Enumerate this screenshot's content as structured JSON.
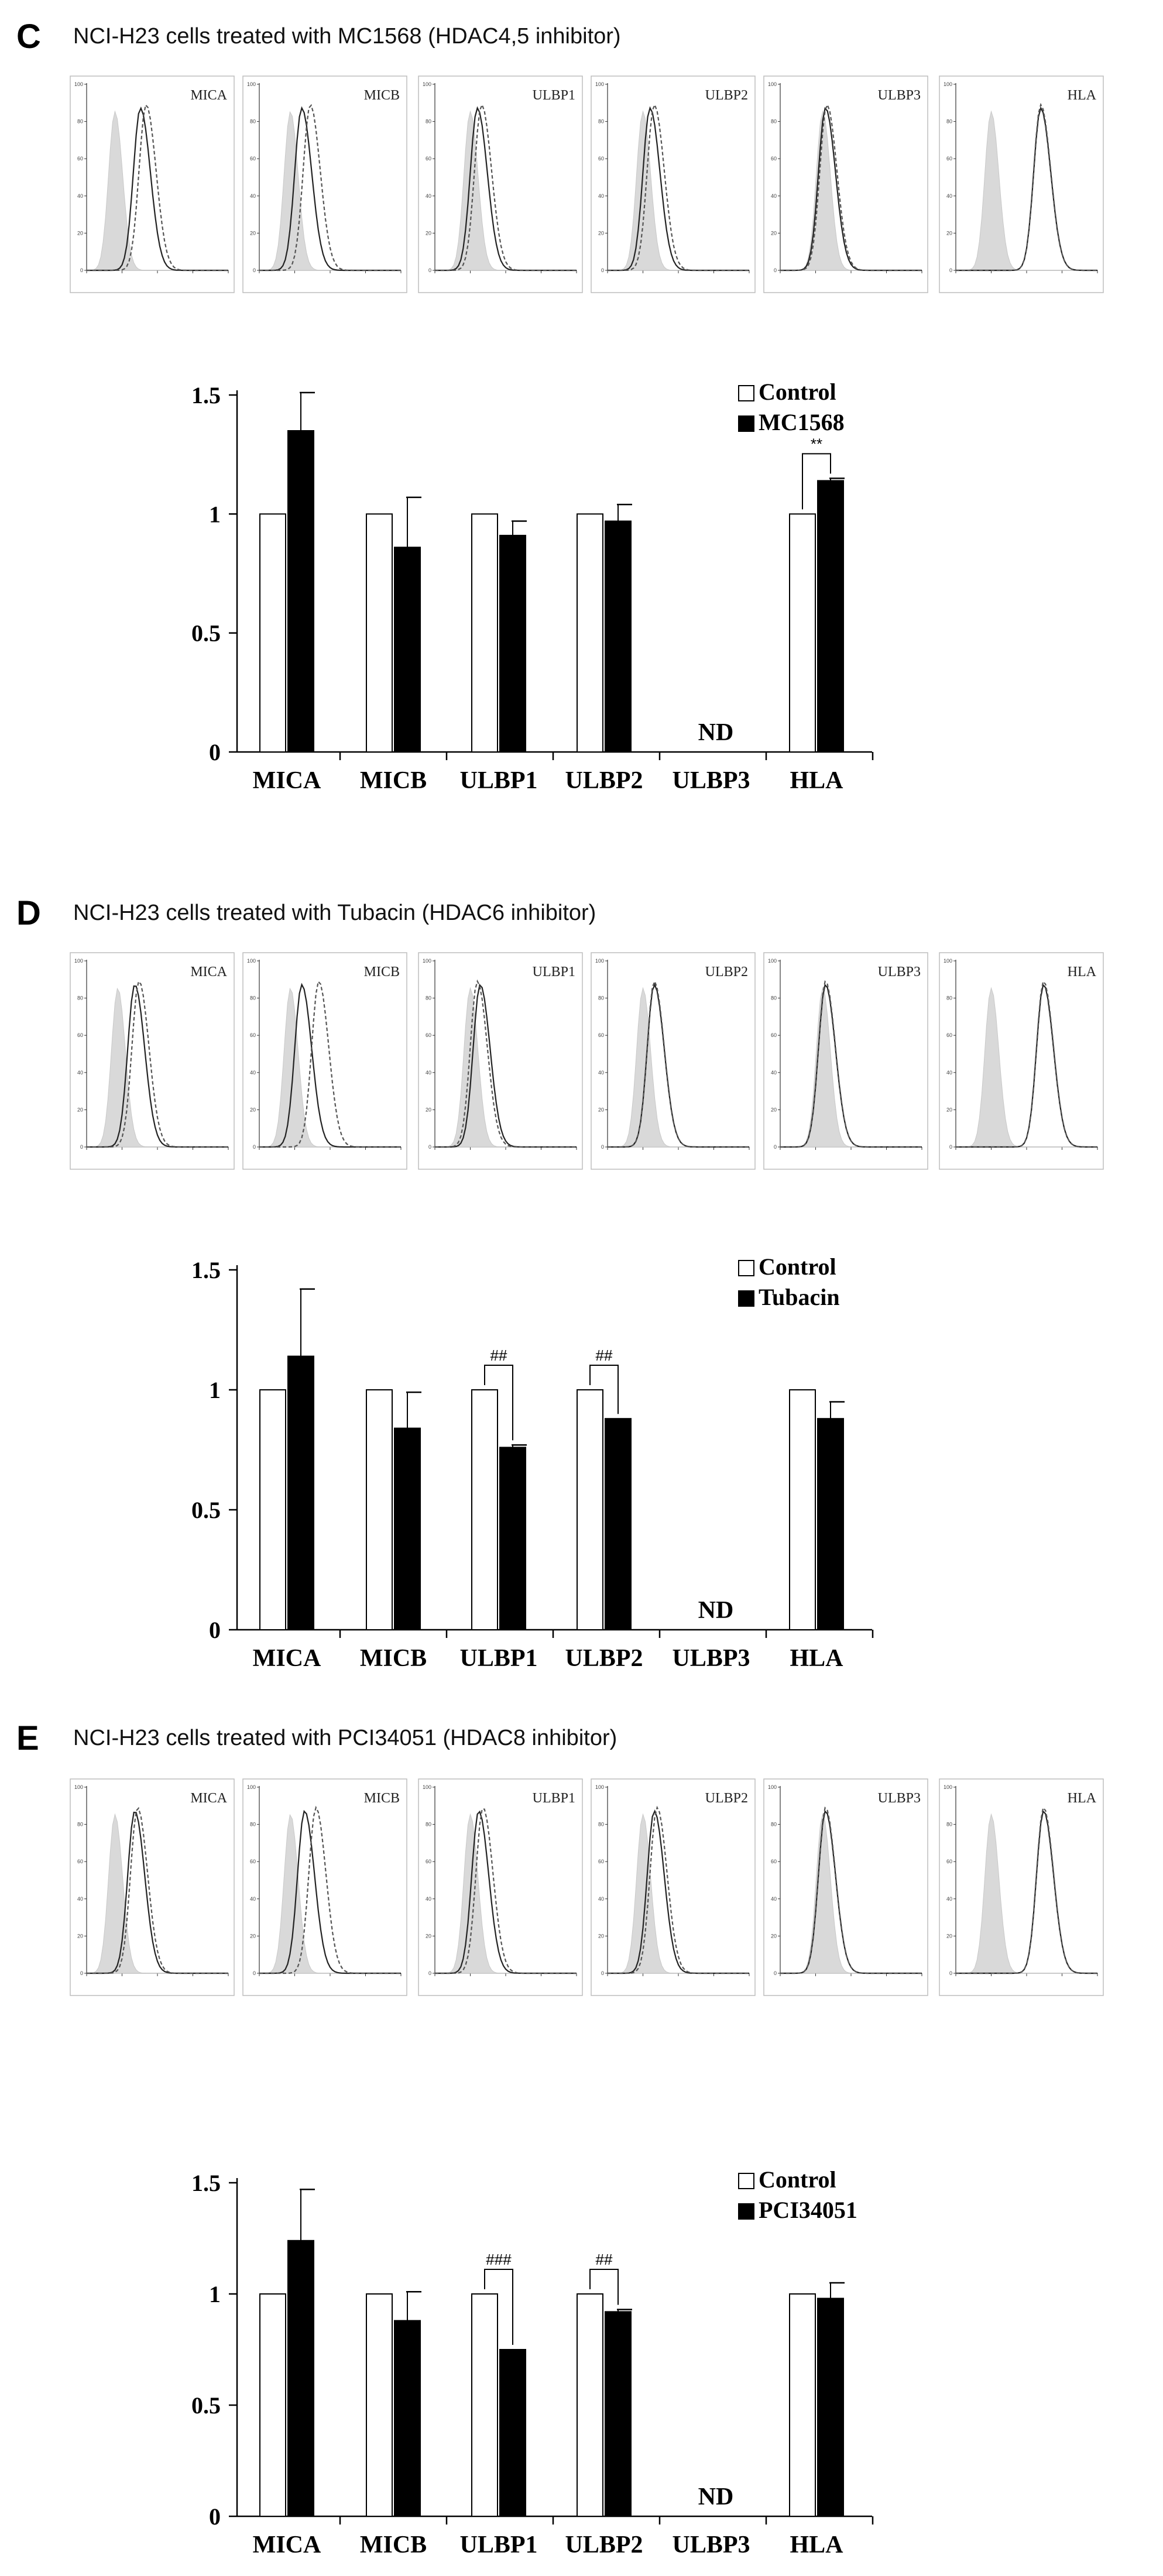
{
  "panels": [
    {
      "letter": "C",
      "title": "NCI-H23 cells treated with MC1568 (HDAC4,5 inhibitor)",
      "hist_labels": [
        "MICA",
        "MICB",
        "ULBP1",
        "ULBP2",
        "ULBP3",
        "HLA"
      ],
      "chart_data": {
        "type": "bar",
        "categories": [
          "MICA",
          "MICB",
          "ULBP1",
          "ULBP2",
          "ULBP3",
          "HLA"
        ],
        "series": [
          {
            "name": "Control",
            "values": [
              1,
              1,
              1,
              1,
              null,
              1
            ]
          },
          {
            "name": "MC1568",
            "values": [
              1.35,
              0.86,
              0.91,
              0.97,
              null,
              1.14
            ],
            "errors": [
              0.16,
              0.21,
              0.06,
              0.07,
              null,
              0.01
            ]
          }
        ],
        "yticks": [
          "0",
          "0.5",
          "1",
          "1.5"
        ],
        "ylim": [
          0,
          1.5
        ],
        "not_detected": {
          "category": "ULBP3",
          "label": "ND"
        },
        "significance": [
          {
            "category": "HLA",
            "label": "**"
          }
        ],
        "legend": "top-right"
      }
    },
    {
      "letter": "D",
      "title": "NCI-H23 cells treated with Tubacin (HDAC6 inhibitor)",
      "hist_labels": [
        "MICA",
        "MICB",
        "ULBP1",
        "ULBP2",
        "ULBP3",
        "HLA"
      ],
      "chart_data": {
        "type": "bar",
        "categories": [
          "MICA",
          "MICB",
          "ULBP1",
          "ULBP2",
          "ULBP3",
          "HLA"
        ],
        "series": [
          {
            "name": "Control",
            "values": [
              1,
              1,
              1,
              1,
              null,
              1
            ]
          },
          {
            "name": "Tubacin",
            "values": [
              1.14,
              0.84,
              0.76,
              0.88,
              null,
              0.88
            ],
            "errors": [
              0.28,
              0.15,
              0.01,
              0,
              null,
              0.07
            ]
          }
        ],
        "yticks": [
          "0",
          "0.5",
          "1",
          "1.5"
        ],
        "ylim": [
          0,
          1.5
        ],
        "not_detected": {
          "category": "ULBP3",
          "label": "ND"
        },
        "significance": [
          {
            "category": "ULBP1",
            "label": "##"
          },
          {
            "category": "ULBP2",
            "label": "##"
          }
        ],
        "legend": "top-right"
      }
    },
    {
      "letter": "E",
      "title": "NCI-H23 cells treated with PCI34051 (HDAC8 inhibitor)",
      "hist_labels": [
        "MICA",
        "MICB",
        "ULBP1",
        "ULBP2",
        "ULBP3",
        "HLA"
      ],
      "chart_data": {
        "type": "bar",
        "categories": [
          "MICA",
          "MICB",
          "ULBP1",
          "ULBP2",
          "ULBP3",
          "HLA"
        ],
        "series": [
          {
            "name": "Control",
            "values": [
              1,
              1,
              1,
              1,
              null,
              1
            ]
          },
          {
            "name": "PCI34051",
            "values": [
              1.24,
              0.88,
              0.75,
              0.92,
              null,
              0.98
            ],
            "errors": [
              0.23,
              0.13,
              0,
              0.01,
              null,
              0.07
            ]
          }
        ],
        "yticks": [
          "0",
          "0.5",
          "1",
          "1.5"
        ],
        "ylim": [
          0,
          1.5
        ],
        "not_detected": {
          "category": "ULBP3",
          "label": "ND"
        },
        "significance": [
          {
            "category": "ULBP1",
            "label": "###"
          },
          {
            "category": "ULBP2",
            "label": "##"
          }
        ],
        "legend": "top-right"
      }
    }
  ],
  "colors": {
    "control_fill": "#ffffff",
    "treated_fill": "#000000",
    "isotype_fill": "#d9d9d9",
    "axis": "#000000"
  }
}
